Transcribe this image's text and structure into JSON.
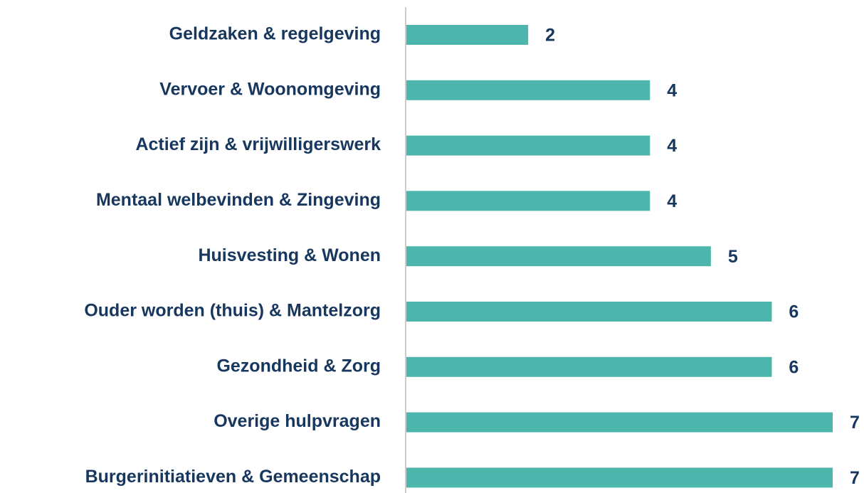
{
  "chart_data": {
    "type": "bar",
    "orientation": "horizontal",
    "categories": [
      "Geldzaken & regelgeving",
      "Vervoer & Woonomgeving",
      "Actief zijn & vrijwilligerswerk",
      "Mentaal welbevinden & Zingeving",
      "Huisvesting & Wonen",
      "Ouder worden (thuis) & Mantelzorg",
      "Gezondheid & Zorg",
      "Overige hulpvragen",
      "Burgerinitiatieven & Gemeenschap"
    ],
    "values": [
      2,
      4,
      4,
      4,
      5,
      6,
      6,
      7,
      7
    ],
    "color": "#4db6ac",
    "xlim": [
      0,
      7
    ]
  }
}
